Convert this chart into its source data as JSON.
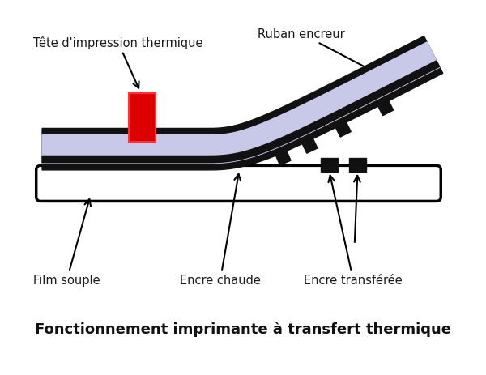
{
  "title": "Fonctionnement imprimante à transfert thermique",
  "bg_color": "#ffffff",
  "label_tete": "Tête d'impression thermique",
  "label_ruban": "Ruban encreur",
  "label_film": "Film souple",
  "label_encre_chaude": "Encre chaude",
  "label_encre_transf": "Encre transférée",
  "ribbon_color": "#c8c8e8",
  "black_color": "#111111",
  "white_color": "#ffffff",
  "printhead_color": "#dd0000",
  "arrow_color": "#000000",
  "title_fontsize": 13,
  "label_fontsize": 10.5,
  "label_color": "#1a1a1a"
}
